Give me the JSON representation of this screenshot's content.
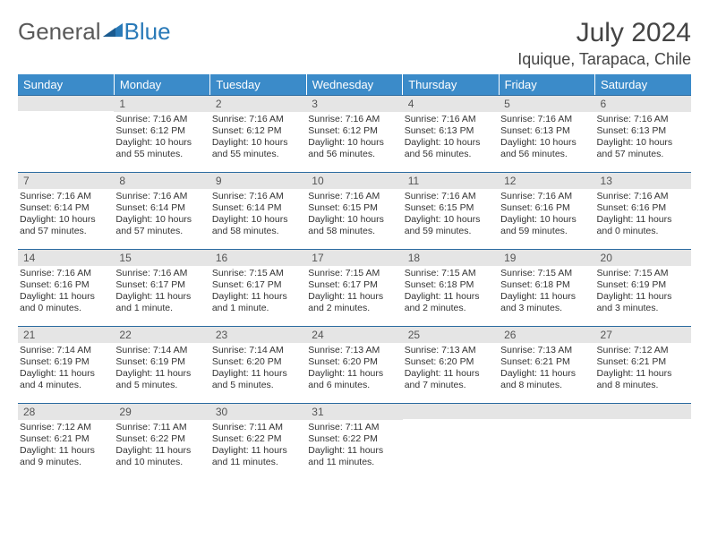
{
  "logo": {
    "text1": "General",
    "text2": "Blue"
  },
  "title": "July 2024",
  "location": "Iquique, Tarapaca, Chile",
  "header_bg": "#3b8bc9",
  "daynum_bg": "#e5e5e5",
  "border_color": "#2a6aa0",
  "days": [
    "Sunday",
    "Monday",
    "Tuesday",
    "Wednesday",
    "Thursday",
    "Friday",
    "Saturday"
  ],
  "weeks": [
    [
      null,
      {
        "n": "1",
        "sr": "Sunrise: 7:16 AM",
        "ss": "Sunset: 6:12 PM",
        "dl": "Daylight: 10 hours and 55 minutes."
      },
      {
        "n": "2",
        "sr": "Sunrise: 7:16 AM",
        "ss": "Sunset: 6:12 PM",
        "dl": "Daylight: 10 hours and 55 minutes."
      },
      {
        "n": "3",
        "sr": "Sunrise: 7:16 AM",
        "ss": "Sunset: 6:12 PM",
        "dl": "Daylight: 10 hours and 56 minutes."
      },
      {
        "n": "4",
        "sr": "Sunrise: 7:16 AM",
        "ss": "Sunset: 6:13 PM",
        "dl": "Daylight: 10 hours and 56 minutes."
      },
      {
        "n": "5",
        "sr": "Sunrise: 7:16 AM",
        "ss": "Sunset: 6:13 PM",
        "dl": "Daylight: 10 hours and 56 minutes."
      },
      {
        "n": "6",
        "sr": "Sunrise: 7:16 AM",
        "ss": "Sunset: 6:13 PM",
        "dl": "Daylight: 10 hours and 57 minutes."
      }
    ],
    [
      {
        "n": "7",
        "sr": "Sunrise: 7:16 AM",
        "ss": "Sunset: 6:14 PM",
        "dl": "Daylight: 10 hours and 57 minutes."
      },
      {
        "n": "8",
        "sr": "Sunrise: 7:16 AM",
        "ss": "Sunset: 6:14 PM",
        "dl": "Daylight: 10 hours and 57 minutes."
      },
      {
        "n": "9",
        "sr": "Sunrise: 7:16 AM",
        "ss": "Sunset: 6:14 PM",
        "dl": "Daylight: 10 hours and 58 minutes."
      },
      {
        "n": "10",
        "sr": "Sunrise: 7:16 AM",
        "ss": "Sunset: 6:15 PM",
        "dl": "Daylight: 10 hours and 58 minutes."
      },
      {
        "n": "11",
        "sr": "Sunrise: 7:16 AM",
        "ss": "Sunset: 6:15 PM",
        "dl": "Daylight: 10 hours and 59 minutes."
      },
      {
        "n": "12",
        "sr": "Sunrise: 7:16 AM",
        "ss": "Sunset: 6:16 PM",
        "dl": "Daylight: 10 hours and 59 minutes."
      },
      {
        "n": "13",
        "sr": "Sunrise: 7:16 AM",
        "ss": "Sunset: 6:16 PM",
        "dl": "Daylight: 11 hours and 0 minutes."
      }
    ],
    [
      {
        "n": "14",
        "sr": "Sunrise: 7:16 AM",
        "ss": "Sunset: 6:16 PM",
        "dl": "Daylight: 11 hours and 0 minutes."
      },
      {
        "n": "15",
        "sr": "Sunrise: 7:16 AM",
        "ss": "Sunset: 6:17 PM",
        "dl": "Daylight: 11 hours and 1 minute."
      },
      {
        "n": "16",
        "sr": "Sunrise: 7:15 AM",
        "ss": "Sunset: 6:17 PM",
        "dl": "Daylight: 11 hours and 1 minute."
      },
      {
        "n": "17",
        "sr": "Sunrise: 7:15 AM",
        "ss": "Sunset: 6:17 PM",
        "dl": "Daylight: 11 hours and 2 minutes."
      },
      {
        "n": "18",
        "sr": "Sunrise: 7:15 AM",
        "ss": "Sunset: 6:18 PM",
        "dl": "Daylight: 11 hours and 2 minutes."
      },
      {
        "n": "19",
        "sr": "Sunrise: 7:15 AM",
        "ss": "Sunset: 6:18 PM",
        "dl": "Daylight: 11 hours and 3 minutes."
      },
      {
        "n": "20",
        "sr": "Sunrise: 7:15 AM",
        "ss": "Sunset: 6:19 PM",
        "dl": "Daylight: 11 hours and 3 minutes."
      }
    ],
    [
      {
        "n": "21",
        "sr": "Sunrise: 7:14 AM",
        "ss": "Sunset: 6:19 PM",
        "dl": "Daylight: 11 hours and 4 minutes."
      },
      {
        "n": "22",
        "sr": "Sunrise: 7:14 AM",
        "ss": "Sunset: 6:19 PM",
        "dl": "Daylight: 11 hours and 5 minutes."
      },
      {
        "n": "23",
        "sr": "Sunrise: 7:14 AM",
        "ss": "Sunset: 6:20 PM",
        "dl": "Daylight: 11 hours and 5 minutes."
      },
      {
        "n": "24",
        "sr": "Sunrise: 7:13 AM",
        "ss": "Sunset: 6:20 PM",
        "dl": "Daylight: 11 hours and 6 minutes."
      },
      {
        "n": "25",
        "sr": "Sunrise: 7:13 AM",
        "ss": "Sunset: 6:20 PM",
        "dl": "Daylight: 11 hours and 7 minutes."
      },
      {
        "n": "26",
        "sr": "Sunrise: 7:13 AM",
        "ss": "Sunset: 6:21 PM",
        "dl": "Daylight: 11 hours and 8 minutes."
      },
      {
        "n": "27",
        "sr": "Sunrise: 7:12 AM",
        "ss": "Sunset: 6:21 PM",
        "dl": "Daylight: 11 hours and 8 minutes."
      }
    ],
    [
      {
        "n": "28",
        "sr": "Sunrise: 7:12 AM",
        "ss": "Sunset: 6:21 PM",
        "dl": "Daylight: 11 hours and 9 minutes."
      },
      {
        "n": "29",
        "sr": "Sunrise: 7:11 AM",
        "ss": "Sunset: 6:22 PM",
        "dl": "Daylight: 11 hours and 10 minutes."
      },
      {
        "n": "30",
        "sr": "Sunrise: 7:11 AM",
        "ss": "Sunset: 6:22 PM",
        "dl": "Daylight: 11 hours and 11 minutes."
      },
      {
        "n": "31",
        "sr": "Sunrise: 7:11 AM",
        "ss": "Sunset: 6:22 PM",
        "dl": "Daylight: 11 hours and 11 minutes."
      },
      null,
      null,
      null
    ]
  ]
}
